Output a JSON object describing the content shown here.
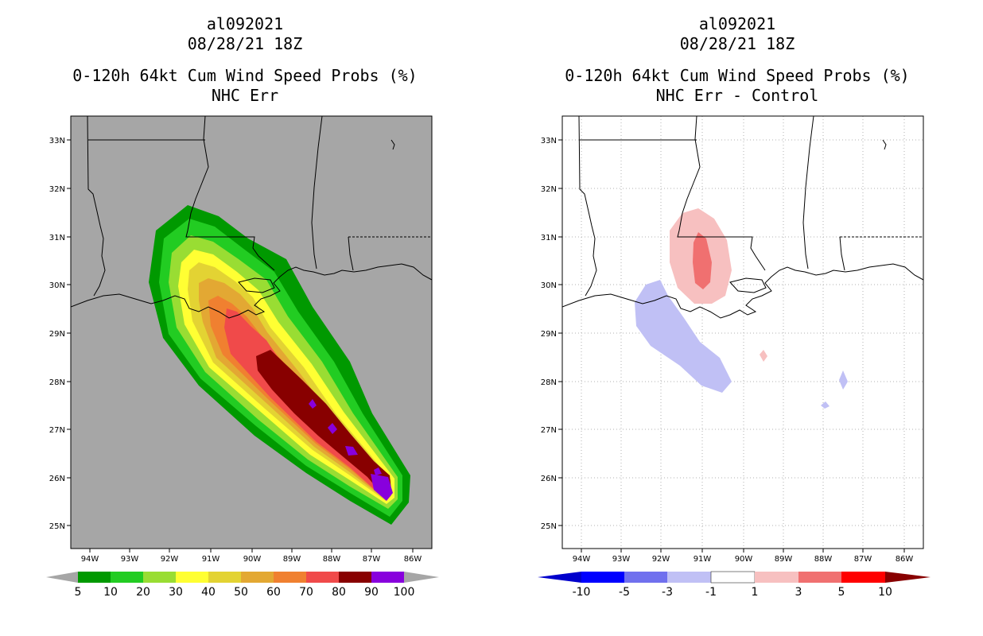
{
  "left_panel": {
    "storm_id": "al092021",
    "datetime": "08/28/21 18Z",
    "title": "0-120h 64kt Cum Wind Speed Probs (%)",
    "subtitle": "NHC Err",
    "colorbar_labels": [
      "5",
      "10",
      "20",
      "30",
      "40",
      "50",
      "60",
      "70",
      "80",
      "90",
      "100"
    ],
    "colorbar_colors": [
      "#009900",
      "#22cc22",
      "#99dd33",
      "#ffff33",
      "#e3d333",
      "#e3a833",
      "#f08030",
      "#f04a4a",
      "#880000",
      "#8800dd"
    ]
  },
  "right_panel": {
    "storm_id": "al092021",
    "datetime": "08/28/21 18Z",
    "title": "0-120h 64kt Cum Wind Speed Probs (%)",
    "subtitle": "NHC Err - Control",
    "colorbar_labels": [
      "-10",
      "-5",
      "-3",
      "-1",
      "1",
      "3",
      "5",
      "10"
    ],
    "colorbar_colors": [
      "#0000cc",
      "#0000ff",
      "#7070ee",
      "#c0c0f5",
      "#ffffff",
      "#f7c0c0",
      "#f07070",
      "#ff0000",
      "#880000"
    ]
  },
  "axes": {
    "lon_labels": [
      "94W",
      "93W",
      "92W",
      "91W",
      "90W",
      "89W",
      "88W",
      "87W",
      "86W"
    ],
    "lat_labels": [
      "33N",
      "32N",
      "31N",
      "30N",
      "29N",
      "28N",
      "27N",
      "26N",
      "25N"
    ]
  },
  "chart_data": [
    {
      "type": "heatmap",
      "title": "0-120h 64kt Cum Wind Speed Probs (%)",
      "subtitle": "NHC Err",
      "x_ticks": [
        -94,
        -93,
        -92,
        -91,
        -90,
        -89,
        -88,
        -87,
        -86
      ],
      "y_ticks": [
        33,
        32,
        31,
        30,
        29,
        28,
        27,
        26,
        25
      ],
      "xlim": [
        -94.4,
        -85.7
      ],
      "ylim": [
        24.5,
        33.5
      ],
      "levels": [
        5,
        10,
        20,
        30,
        40,
        50,
        60,
        70,
        80,
        90,
        100
      ]
    },
    {
      "type": "heatmap",
      "title": "0-120h 64kt Cum Wind Speed Probs (%)",
      "subtitle": "NHC Err - Control",
      "x_ticks": [
        -94,
        -93,
        -92,
        -91,
        -90,
        -89,
        -88,
        -87,
        -86
      ],
      "y_ticks": [
        33,
        32,
        31,
        30,
        29,
        28,
        27,
        26,
        25
      ],
      "xlim": [
        -94.4,
        -85.7
      ],
      "ylim": [
        24.5,
        33.5
      ],
      "levels": [
        -10,
        -5,
        -3,
        -1,
        1,
        3,
        5,
        10
      ]
    }
  ]
}
